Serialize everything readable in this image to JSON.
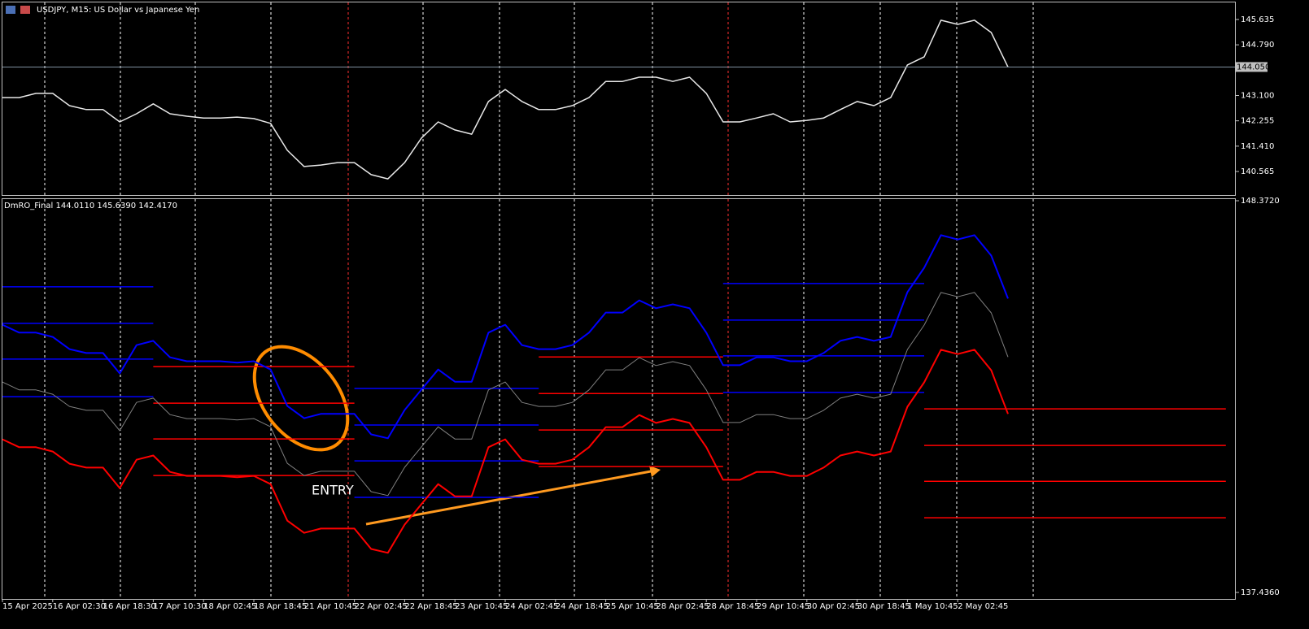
{
  "chart_data": [
    {
      "type": "line",
      "title": "USDJPY, M15:  US Dollar vs Japanese Yen",
      "color": "#e8e8e8",
      "values": [
        143.03,
        143.03,
        143.17,
        143.17,
        142.76,
        142.63,
        142.63,
        142.22,
        142.49,
        142.82,
        142.49,
        142.41,
        142.35,
        142.35,
        142.38,
        142.33,
        142.17,
        141.27,
        140.73,
        140.78,
        140.86,
        140.86,
        140.46,
        140.32,
        140.86,
        141.68,
        142.22,
        141.95,
        141.81,
        142.9,
        143.3,
        142.9,
        142.63,
        142.63,
        142.76,
        143.03,
        143.57,
        143.57,
        143.71,
        143.71,
        143.57,
        143.71,
        143.17,
        142.22,
        142.22,
        142.35,
        142.49,
        142.22,
        142.27,
        142.35,
        142.63,
        142.9,
        142.76,
        143.03,
        144.12,
        144.39,
        145.61,
        145.47,
        145.61,
        145.2,
        144.05
      ],
      "last_price": {
        "value": 144.05,
        "label": "144.050"
      },
      "ylim": [
        139.78,
        146.23
      ],
      "yticks": [
        145.635,
        {
          "value": 144.79,
          "label": "144.790"
        },
        {
          "value": 143.1,
          "label": "143.100"
        },
        142.255,
        {
          "value": 141.41,
          "label": "141.410"
        },
        140.565
      ]
    },
    {
      "type": "line",
      "title": "DmRO_Final 144.0110 145.6390 142.4170",
      "categories": [
        "15 Apr 2025",
        null,
        null,
        "16 Apr 02:30",
        null,
        null,
        "16 Apr 18:30",
        null,
        null,
        "17 Apr 10:30",
        null,
        null,
        "18 Apr 02:45",
        null,
        null,
        "18 Apr 18:45",
        null,
        null,
        "21 Apr 10:45",
        null,
        null,
        "22 Apr 02:45",
        null,
        null,
        "22 Apr 18:45",
        null,
        null,
        "23 Apr 10:45",
        null,
        null,
        "24 Apr 02:45",
        null,
        null,
        "24 Apr 18:45",
        null,
        null,
        "25 Apr 10:45",
        null,
        null,
        "28 Apr 02:45",
        null,
        null,
        "28 Apr 18:45",
        null,
        null,
        "29 Apr 10:45",
        null,
        null,
        "30 Apr 02:45",
        null,
        null,
        "30 Apr 18:45",
        null,
        null,
        "1 May 10:45",
        null,
        null,
        "2 May 02:45",
        null,
        null,
        null,
        null,
        null,
        null,
        null,
        null,
        null,
        null,
        null,
        null,
        null,
        null,
        null,
        null
      ],
      "series": [
        {
          "color": "#0000ff",
          "values": [
            144.91,
            144.69,
            144.69,
            144.57,
            144.23,
            144.12,
            144.12,
            143.55,
            144.34,
            144.46,
            144.0,
            143.89,
            143.89,
            143.89,
            143.85,
            143.89,
            143.66,
            142.64,
            142.3,
            142.42,
            142.42,
            142.42,
            141.85,
            141.74,
            142.53,
            143.1,
            143.66,
            143.32,
            143.32,
            144.69,
            144.91,
            144.34,
            144.23,
            144.23,
            144.34,
            144.69,
            145.25,
            145.25,
            145.59,
            145.37,
            145.48,
            145.37,
            144.69,
            143.78,
            143.78,
            144.0,
            144.0,
            143.89,
            143.89,
            144.12,
            144.46,
            144.57,
            144.46,
            144.57,
            145.82,
            146.5,
            147.41,
            147.29,
            147.41,
            146.84,
            145.64,
            null,
            null,
            null,
            null,
            null,
            null,
            null,
            null,
            null,
            null,
            null,
            null,
            null
          ]
        },
        {
          "color": "#808080",
          "values": [
            143.31,
            143.09,
            143.09,
            142.97,
            142.63,
            142.52,
            142.52,
            141.95,
            142.74,
            142.86,
            142.4,
            142.29,
            142.29,
            142.29,
            142.25,
            142.29,
            142.06,
            141.04,
            140.7,
            140.82,
            140.82,
            140.82,
            140.25,
            140.14,
            140.93,
            141.5,
            142.06,
            141.72,
            141.72,
            143.09,
            143.31,
            142.74,
            142.63,
            142.63,
            142.74,
            143.09,
            143.65,
            143.65,
            143.99,
            143.77,
            143.88,
            143.77,
            143.09,
            142.18,
            142.18,
            142.4,
            142.4,
            142.29,
            142.29,
            142.52,
            142.86,
            142.97,
            142.86,
            142.97,
            144.22,
            144.9,
            145.81,
            145.69,
            145.81,
            145.24,
            144.01,
            null,
            null,
            null,
            null,
            null,
            null,
            null,
            null,
            null,
            null,
            null,
            null,
            null
          ]
        },
        {
          "color": "#ff0000",
          "values": [
            141.71,
            141.49,
            141.49,
            141.37,
            141.03,
            140.92,
            140.92,
            140.35,
            141.14,
            141.26,
            140.8,
            140.69,
            140.69,
            140.69,
            140.65,
            140.69,
            140.46,
            139.44,
            139.1,
            139.22,
            139.22,
            139.22,
            138.65,
            138.54,
            139.33,
            139.9,
            140.46,
            140.12,
            140.12,
            141.49,
            141.71,
            141.14,
            141.03,
            141.03,
            141.14,
            141.49,
            142.05,
            142.05,
            142.39,
            142.17,
            142.28,
            142.17,
            141.49,
            140.58,
            140.58,
            140.8,
            140.8,
            140.69,
            140.69,
            140.92,
            141.26,
            141.37,
            141.26,
            141.37,
            142.62,
            143.3,
            144.21,
            144.09,
            144.21,
            143.64,
            142.42,
            null,
            null,
            null,
            null,
            null,
            null,
            null,
            null,
            null,
            null,
            null,
            null,
            null
          ]
        }
      ],
      "levels": [
        {
          "color": "#0000ff",
          "start": 0,
          "end": 9,
          "values": [
            145.97,
            144.95,
            143.95,
            142.9
          ]
        },
        {
          "color": "#ff0000",
          "start": 9,
          "end": 21,
          "values": [
            143.74,
            142.72,
            141.72,
            140.7
          ]
        },
        {
          "color": "#0000ff",
          "start": 21,
          "end": 32,
          "values": [
            143.13,
            142.11,
            141.11,
            140.09
          ]
        },
        {
          "color": "#ff0000",
          "start": 32,
          "end": 43,
          "values": [
            144.01,
            142.99,
            141.97,
            140.95
          ]
        },
        {
          "color": "#0000ff",
          "start": 43,
          "end": 55,
          "values": [
            146.06,
            145.04,
            144.04,
            143.02
          ]
        },
        {
          "color": "#ff0000",
          "start": 55,
          "end": 73,
          "values": [
            142.56,
            141.54,
            140.54,
            139.52
          ]
        }
      ],
      "annotation": "ENTRY",
      "ylim": [
        137.436,
        148.372
      ],
      "yticks": [
        {
          "value": 148.372,
          "label": "148.3720"
        },
        {
          "value": 137.436,
          "label": "137.4360"
        }
      ]
    }
  ]
}
